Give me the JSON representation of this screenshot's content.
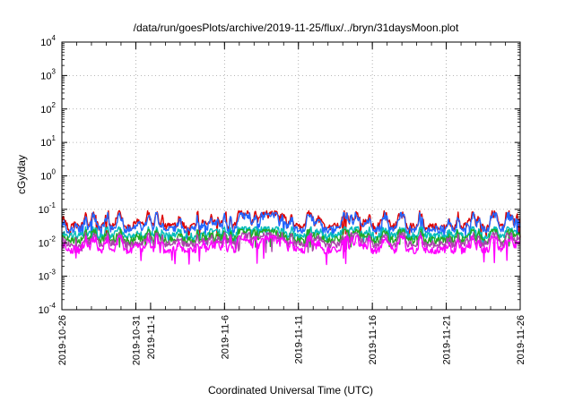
{
  "chart_data": {
    "type": "line",
    "title": "/data/run/goesPlots/archive/2019-11-25/flux/../bryn/31daysMoon.plot",
    "xlabel": "Coordinated Universal Time (UTC)",
    "ylabel": "cGy/day",
    "yscale": "log",
    "ylim": [
      0.0001,
      10000
    ],
    "xlim": [
      "2019-10-26",
      "2019-11-26"
    ],
    "grid": true,
    "grid_style": "dotted",
    "y_ticks": [
      {
        "base": "10",
        "exp": "-4",
        "value": 0.0001
      },
      {
        "base": "10",
        "exp": "-3",
        "value": 0.001
      },
      {
        "base": "10",
        "exp": "-2",
        "value": 0.01
      },
      {
        "base": "10",
        "exp": "-1",
        "value": 0.1
      },
      {
        "base": "10",
        "exp": "0",
        "value": 1
      },
      {
        "base": "10",
        "exp": "1",
        "value": 10
      },
      {
        "base": "10",
        "exp": "2",
        "value": 100
      },
      {
        "base": "10",
        "exp": "3",
        "value": 1000
      },
      {
        "base": "10",
        "exp": "4",
        "value": 10000
      }
    ],
    "x_major_ticks": [
      "2019-10-26",
      "2019-10-31",
      "2019-11-6",
      "2019-11-11",
      "2019-11-16",
      "2019-11-21",
      "2019-11-26"
    ],
    "x_extra_tick": {
      "label": "2019-11-1",
      "date": "2019-11-01"
    },
    "series": [
      {
        "color": "#dd0000",
        "y_min": 0.014,
        "y_max": 0.09,
        "typical": 0.03
      },
      {
        "color": "#2266ff",
        "y_min": 0.012,
        "y_max": 0.08,
        "typical": 0.025
      },
      {
        "color": "#00bbbb",
        "y_min": 0.009,
        "y_max": 0.03,
        "typical": 0.016
      },
      {
        "color": "#22aa22",
        "y_min": 0.007,
        "y_max": 0.025,
        "typical": 0.012
      },
      {
        "color": "#aa44aa",
        "y_min": 0.005,
        "y_max": 0.02,
        "typical": 0.009
      },
      {
        "color": "#ff00ff",
        "y_min": 0.0022,
        "y_max": 0.016,
        "typical": 0.006
      }
    ]
  }
}
